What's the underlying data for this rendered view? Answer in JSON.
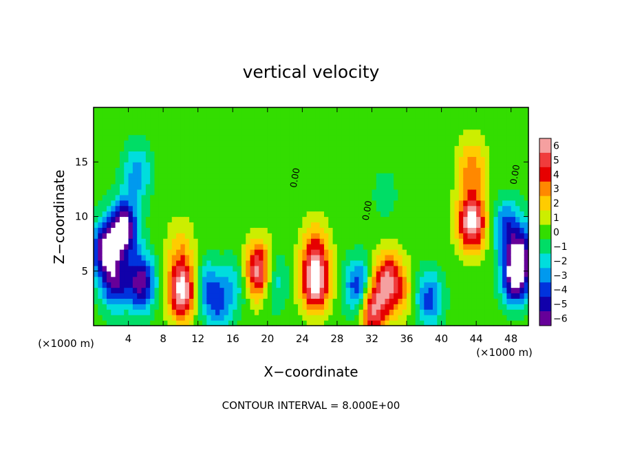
{
  "chart_data": {
    "type": "heatmap",
    "title": "vertical velocity",
    "xlabel": "X−coordinate",
    "ylabel": "Z−coordinate",
    "x_unit": "(×1000 m)",
    "x_unit_right": "(×1000 m)",
    "xlim": [
      0,
      50
    ],
    "ylim": [
      0,
      20
    ],
    "x_ticks": [
      4,
      8,
      12,
      16,
      20,
      24,
      28,
      32,
      36,
      40,
      44,
      48
    ],
    "y_ticks": [
      5,
      10,
      15
    ],
    "footer": "CONTOUR INTERVAL = 8.000E+00",
    "colorbar": {
      "levels": [
        6,
        5,
        4,
        3,
        2,
        1,
        0,
        -1,
        -2,
        -3,
        -4,
        -5,
        -6
      ],
      "labels": [
        "6",
        "5",
        "4",
        "3",
        "2",
        "1",
        "0",
        "−1",
        "−2",
        "−3",
        "−4",
        "−5",
        "−6"
      ],
      "colors": [
        "#f5a0a0",
        "#f03c3c",
        "#e60000",
        "#ff8800",
        "#ffcc00",
        "#ccee00",
        "#33dd00",
        "#00dd66",
        "#00dddd",
        "#0099ee",
        "#0033dd",
        "#1100aa",
        "#660099"
      ]
    },
    "contour_labels": [
      {
        "text": "0.00",
        "x": 23.5,
        "y": 13.5
      },
      {
        "text": "0.00",
        "x": 31.8,
        "y": 10.5
      },
      {
        "text": "0.00",
        "x": 48.8,
        "y": 13.8
      }
    ],
    "features": [
      {
        "x": 3.5,
        "z": 9.0,
        "w": -7
      },
      {
        "x": 1.2,
        "z": 7.0,
        "w": -6
      },
      {
        "x": 5.5,
        "z": 4.0,
        "w": -6
      },
      {
        "x": 2.5,
        "z": 4.0,
        "w": -5
      },
      {
        "x": 5.0,
        "z": 14.0,
        "w": -3
      },
      {
        "x": 10.2,
        "z": 3.2,
        "w": 7
      },
      {
        "x": 10.0,
        "z": 7.0,
        "w": 2
      },
      {
        "x": 13.0,
        "z": 3.5,
        "w": -3
      },
      {
        "x": 14.5,
        "z": 2.0,
        "w": -3
      },
      {
        "x": 16.5,
        "z": 4.0,
        "w": -2
      },
      {
        "x": 19.0,
        "z": 5.0,
        "w": 7
      },
      {
        "x": 20.5,
        "z": 4.2,
        "w": -3
      },
      {
        "x": 25.5,
        "z": 4.0,
        "w": 7
      },
      {
        "x": 25.5,
        "z": 7.0,
        "w": 3
      },
      {
        "x": 30.5,
        "z": 3.5,
        "w": -5
      },
      {
        "x": 32.0,
        "z": 1.6,
        "w": 6
      },
      {
        "x": 33.8,
        "z": 4.2,
        "w": 5
      },
      {
        "x": 35.5,
        "z": 3.0,
        "w": 2
      },
      {
        "x": 38.5,
        "z": 2.5,
        "w": -4
      },
      {
        "x": 43.5,
        "z": 9.5,
        "w": 7
      },
      {
        "x": 43.5,
        "z": 14.5,
        "w": 3
      },
      {
        "x": 48.5,
        "z": 4.5,
        "w": -7
      },
      {
        "x": 47.5,
        "z": 9.0,
        "w": -4
      },
      {
        "x": 49.5,
        "z": 7.0,
        "w": -4
      },
      {
        "x": 33.5,
        "z": 12.0,
        "w": -1
      }
    ]
  }
}
